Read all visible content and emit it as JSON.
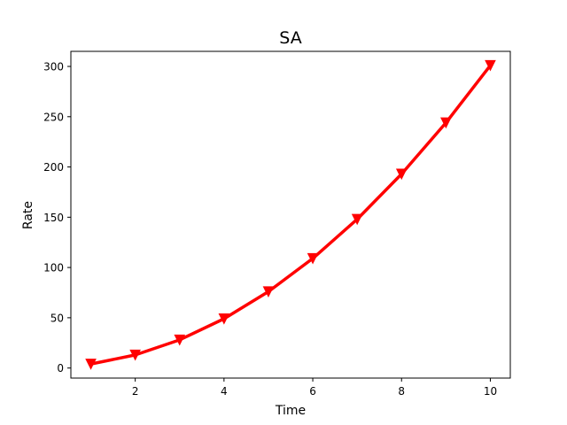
{
  "chart_data": {
    "type": "line",
    "title": "SA",
    "xlabel": "Time",
    "ylabel": "Rate",
    "xlim": [
      0.55,
      10.45
    ],
    "ylim": [
      -10,
      315
    ],
    "xticks": [
      2,
      4,
      6,
      8,
      10
    ],
    "yticks": [
      0,
      50,
      100,
      150,
      200,
      250,
      300
    ],
    "grid": false,
    "legend": "none",
    "series": [
      {
        "x": [
          1,
          2,
          3,
          4,
          5,
          6,
          7,
          8,
          9,
          10
        ],
        "values": [
          4,
          13,
          28,
          49,
          76,
          109,
          148,
          193,
          244,
          301
        ],
        "color": "#ff0000",
        "marker": "triangle-down"
      }
    ]
  }
}
